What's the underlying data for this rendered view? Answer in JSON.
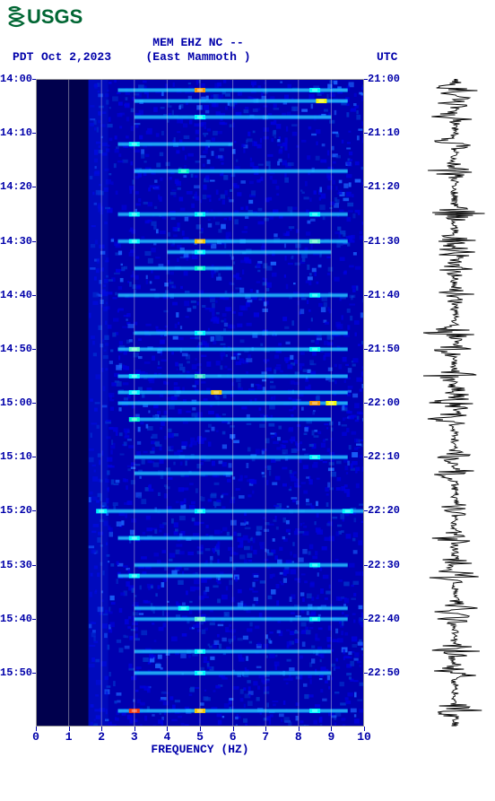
{
  "logo": {
    "text": "USGS"
  },
  "header": {
    "line1": "MEM EHZ NC --",
    "line2": "(East Mammoth )",
    "left_tz": "PDT",
    "date": "Oct 2,2023",
    "right_tz": "UTC"
  },
  "spectrogram": {
    "type": "heatmap",
    "xlim": [
      0,
      10
    ],
    "ylim_minutes": [
      0,
      120
    ],
    "background_color": "#00008b",
    "base_color": "#0000cd",
    "quiet_band_color": "#00004d",
    "quiet_band": {
      "freq_start": 0,
      "freq_end": 1.6
    },
    "xticks": [
      0,
      1,
      2,
      3,
      4,
      5,
      6,
      7,
      8,
      9,
      10
    ],
    "xlabel": "FREQUENCY (HZ)",
    "grid_color": "#e0e0e0",
    "left_ticks": [
      {
        "m": 0,
        "label": "14:00"
      },
      {
        "m": 10,
        "label": "14:10"
      },
      {
        "m": 20,
        "label": "14:20"
      },
      {
        "m": 30,
        "label": "14:30"
      },
      {
        "m": 40,
        "label": "14:40"
      },
      {
        "m": 50,
        "label": "14:50"
      },
      {
        "m": 60,
        "label": "15:00"
      },
      {
        "m": 70,
        "label": "15:10"
      },
      {
        "m": 80,
        "label": "15:20"
      },
      {
        "m": 90,
        "label": "15:30"
      },
      {
        "m": 100,
        "label": "15:40"
      },
      {
        "m": 110,
        "label": "15:50"
      }
    ],
    "right_ticks": [
      {
        "m": 0,
        "label": "21:00"
      },
      {
        "m": 10,
        "label": "21:10"
      },
      {
        "m": 20,
        "label": "21:20"
      },
      {
        "m": 30,
        "label": "21:30"
      },
      {
        "m": 40,
        "label": "21:40"
      },
      {
        "m": 50,
        "label": "21:50"
      },
      {
        "m": 60,
        "label": "22:00"
      },
      {
        "m": 70,
        "label": "22:10"
      },
      {
        "m": 80,
        "label": "22:20"
      },
      {
        "m": 90,
        "label": "22:30"
      },
      {
        "m": 100,
        "label": "22:40"
      },
      {
        "m": 110,
        "label": "22:50"
      }
    ],
    "events": [
      {
        "t": 2,
        "f0": 2.5,
        "f1": 9.5,
        "peaks": [
          {
            "f": 5,
            "c": "#ff9900"
          },
          {
            "f": 8.5,
            "c": "#00ffff"
          }
        ]
      },
      {
        "t": 4,
        "f0": 3,
        "f1": 9.5,
        "peaks": [
          {
            "f": 8.7,
            "c": "#ffff00"
          }
        ]
      },
      {
        "t": 7,
        "f0": 3,
        "f1": 9,
        "peaks": [
          {
            "f": 5,
            "c": "#00ffff"
          }
        ]
      },
      {
        "t": 12,
        "f0": 2.5,
        "f1": 6,
        "peaks": [
          {
            "f": 3,
            "c": "#00ffff"
          }
        ]
      },
      {
        "t": 17,
        "f0": 3,
        "f1": 9.5,
        "peaks": [
          {
            "f": 4.5,
            "c": "#00ffcc"
          }
        ]
      },
      {
        "t": 25,
        "f0": 2.5,
        "f1": 9.5,
        "peaks": [
          {
            "f": 3,
            "c": "#00ffff"
          },
          {
            "f": 5,
            "c": "#00ffff"
          },
          {
            "f": 8.5,
            "c": "#00ffff"
          }
        ]
      },
      {
        "t": 30,
        "f0": 2.5,
        "f1": 9.5,
        "peaks": [
          {
            "f": 5,
            "c": "#ffcc00"
          },
          {
            "f": 3,
            "c": "#00ffff"
          },
          {
            "f": 8.5,
            "c": "#66ffcc"
          }
        ]
      },
      {
        "t": 32,
        "f0": 4,
        "f1": 9,
        "peaks": [
          {
            "f": 5,
            "c": "#00ffff"
          }
        ]
      },
      {
        "t": 35,
        "f0": 3,
        "f1": 6,
        "peaks": [
          {
            "f": 5,
            "c": "#00ffcc"
          }
        ]
      },
      {
        "t": 40,
        "f0": 2.5,
        "f1": 9.5,
        "peaks": [
          {
            "f": 8.5,
            "c": "#00ffff"
          }
        ]
      },
      {
        "t": 47,
        "f0": 3,
        "f1": 9.5,
        "peaks": [
          {
            "f": 5,
            "c": "#00ffff"
          }
        ]
      },
      {
        "t": 50,
        "f0": 2.5,
        "f1": 9.5,
        "peaks": [
          {
            "f": 3,
            "c": "#66ffcc"
          },
          {
            "f": 8.5,
            "c": "#00ffff"
          }
        ]
      },
      {
        "t": 55,
        "f0": 2.5,
        "f1": 9.5,
        "peaks": [
          {
            "f": 3,
            "c": "#00ffff"
          },
          {
            "f": 5,
            "c": "#33ddcc"
          }
        ]
      },
      {
        "t": 58,
        "f0": 2.5,
        "f1": 9.5,
        "peaks": [
          {
            "f": 5.5,
            "c": "#ffcc00"
          },
          {
            "f": 3,
            "c": "#00ffff"
          }
        ]
      },
      {
        "t": 60,
        "f0": 2.5,
        "f1": 9.5,
        "peaks": [
          {
            "f": 9,
            "c": "#ffff00"
          },
          {
            "f": 8.5,
            "c": "#ff9900"
          }
        ]
      },
      {
        "t": 63,
        "f0": 3,
        "f1": 9,
        "peaks": [
          {
            "f": 3,
            "c": "#00ffcc"
          }
        ]
      },
      {
        "t": 70,
        "f0": 3,
        "f1": 9.5,
        "peaks": [
          {
            "f": 8.5,
            "c": "#00ffff"
          }
        ]
      },
      {
        "t": 73,
        "f0": 3,
        "f1": 6,
        "peaks": []
      },
      {
        "t": 80,
        "f0": 2,
        "f1": 10,
        "peaks": [
          {
            "f": 2,
            "c": "#00ffff"
          },
          {
            "f": 5,
            "c": "#00ffff"
          },
          {
            "f": 9.5,
            "c": "#00ffff"
          }
        ]
      },
      {
        "t": 85,
        "f0": 2.5,
        "f1": 6,
        "peaks": [
          {
            "f": 3,
            "c": "#00ffff"
          }
        ]
      },
      {
        "t": 90,
        "f0": 3,
        "f1": 9.5,
        "peaks": [
          {
            "f": 8.5,
            "c": "#00ffff"
          }
        ]
      },
      {
        "t": 92,
        "f0": 2.5,
        "f1": 6,
        "peaks": [
          {
            "f": 3,
            "c": "#00ffff"
          }
        ]
      },
      {
        "t": 98,
        "f0": 3,
        "f1": 9.5,
        "peaks": [
          {
            "f": 4.5,
            "c": "#00ffff"
          }
        ]
      },
      {
        "t": 100,
        "f0": 3,
        "f1": 9.5,
        "peaks": [
          {
            "f": 5,
            "c": "#66ffcc"
          },
          {
            "f": 8.5,
            "c": "#00ffff"
          }
        ]
      },
      {
        "t": 106,
        "f0": 3,
        "f1": 9,
        "peaks": [
          {
            "f": 5,
            "c": "#00ffff"
          }
        ]
      },
      {
        "t": 110,
        "f0": 3,
        "f1": 9,
        "peaks": [
          {
            "f": 5,
            "c": "#00ffff"
          }
        ]
      },
      {
        "t": 117,
        "f0": 2.5,
        "f1": 9.5,
        "peaks": [
          {
            "f": 3,
            "c": "#ff3300"
          },
          {
            "f": 5,
            "c": "#ffcc00"
          },
          {
            "f": 8.5,
            "c": "#00ffff"
          }
        ]
      }
    ]
  },
  "seismogram": {
    "color": "#000000",
    "spikes_at": [
      2,
      4,
      7,
      12,
      17,
      25,
      30,
      32,
      35,
      40,
      47,
      50,
      55,
      58,
      60,
      63,
      70,
      73,
      80,
      85,
      90,
      92,
      98,
      100,
      106,
      110,
      117
    ],
    "baseline_width": 3,
    "spike_width": 28,
    "max_width": 35
  }
}
